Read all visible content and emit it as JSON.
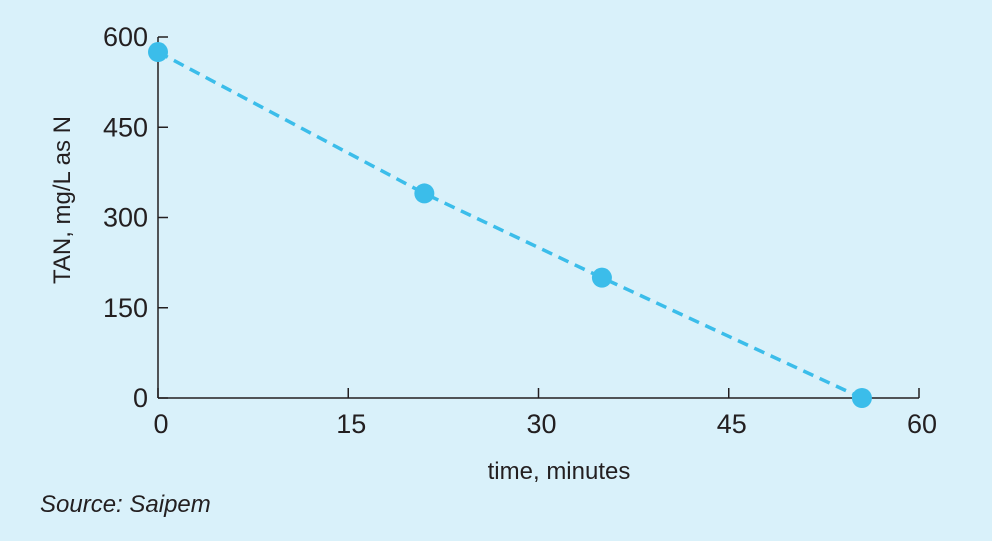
{
  "chart_data": {
    "type": "line",
    "xlabel": "time, minutes",
    "ylabel": "TAN, mg/L as N",
    "xlim": [
      0,
      60
    ],
    "ylim": [
      0,
      600
    ],
    "x_ticks": [
      "0",
      "15",
      "30",
      "45",
      "60"
    ],
    "y_ticks": [
      "0",
      "150",
      "300",
      "450",
      "600"
    ],
    "grid": false,
    "series": [
      {
        "x": [
          0,
          21,
          35,
          55.5
        ],
        "y": [
          575,
          340,
          200,
          0
        ],
        "style": "dashed line with circular markers",
        "color": "#3bbdea"
      }
    ]
  },
  "source": "Source: Saipem",
  "colors": {
    "background": "#d9f1fa",
    "axis": "#231f20",
    "series": "#3bbdea"
  }
}
